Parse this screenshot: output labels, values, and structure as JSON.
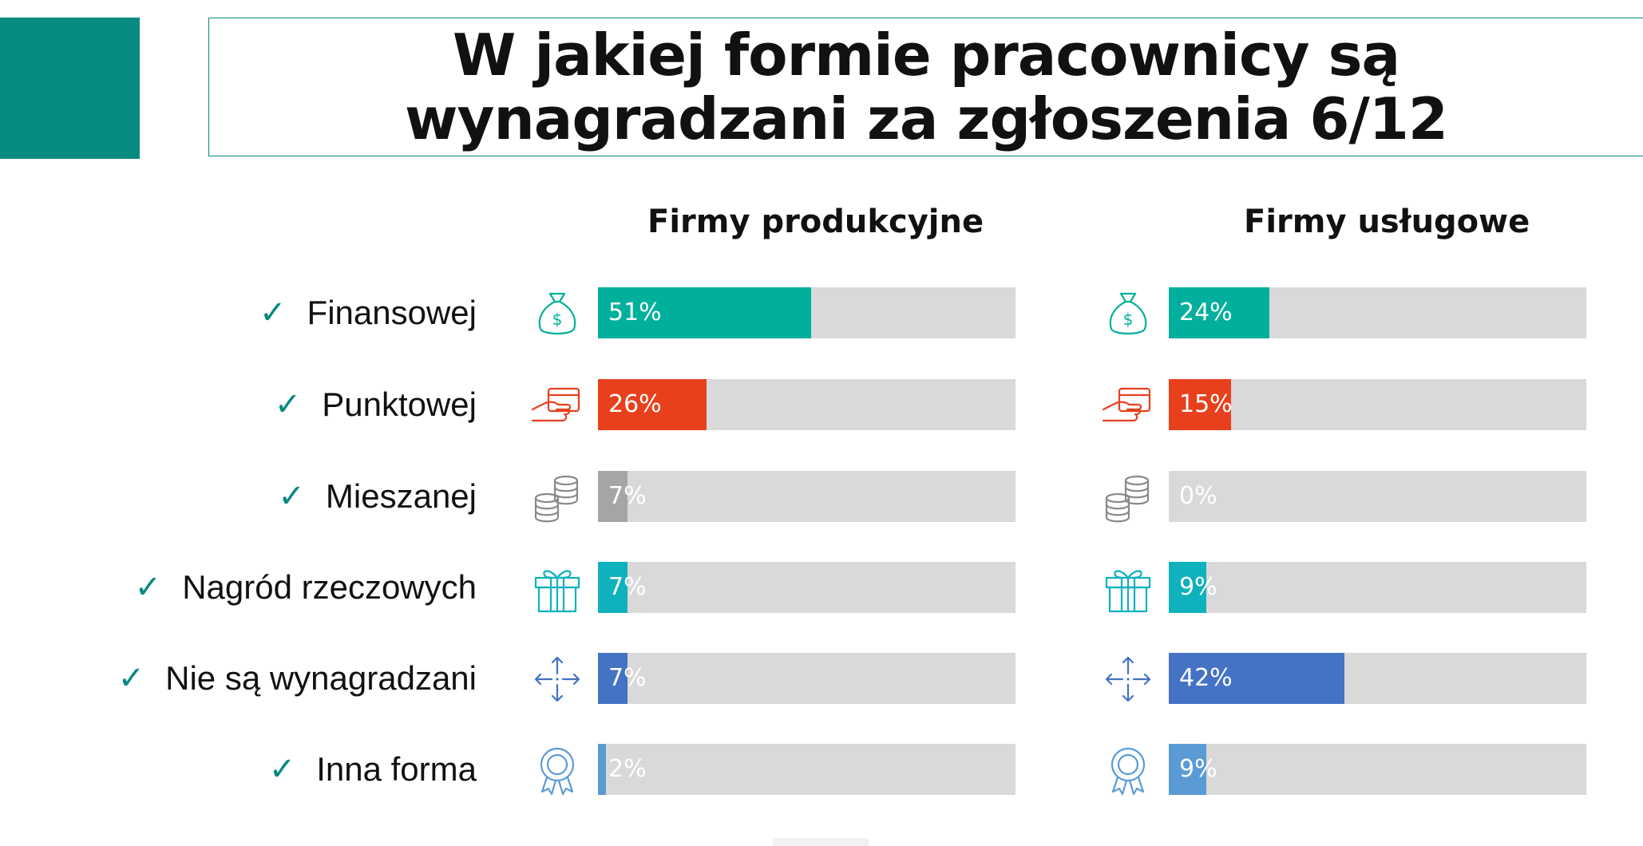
{
  "header": {
    "title_line1": "W jakiej formie pracownicy są",
    "title_line2": "wynagradzani za zgłoszenia 6/12"
  },
  "colors": {
    "accent": "#078a80",
    "track": "#d9d9d9"
  },
  "chart_data": {
    "type": "bar",
    "orientation": "horizontal",
    "categories": [
      "Finansowej",
      "Punktowej",
      "Mieszanej",
      "Nagród rzeczowych",
      "Nie są wynagradzani",
      "Inna forma"
    ],
    "icons": [
      "money-bag-icon",
      "card-in-hand-icon",
      "coins-stack-icon",
      "gift-icon",
      "arrows-icon",
      "award-ribbon-icon"
    ],
    "bar_colors": [
      "#00b09c",
      "#e8401c",
      "#a5a5a5",
      "#0fb1bd",
      "#4472c4",
      "#5b9bd5"
    ],
    "xlim": [
      0,
      100
    ],
    "series": [
      {
        "name": "Firmy produkcyjne",
        "values": [
          51,
          26,
          7,
          7,
          7,
          2
        ],
        "labels": [
          "51%",
          "26%",
          "7%",
          "7%",
          "7%",
          "2%"
        ]
      },
      {
        "name": "Firmy usługowe",
        "values": [
          24,
          15,
          0,
          9,
          42,
          9
        ],
        "labels": [
          "24%",
          "15%",
          "0%",
          "9%",
          "42%",
          "9%"
        ]
      }
    ]
  }
}
